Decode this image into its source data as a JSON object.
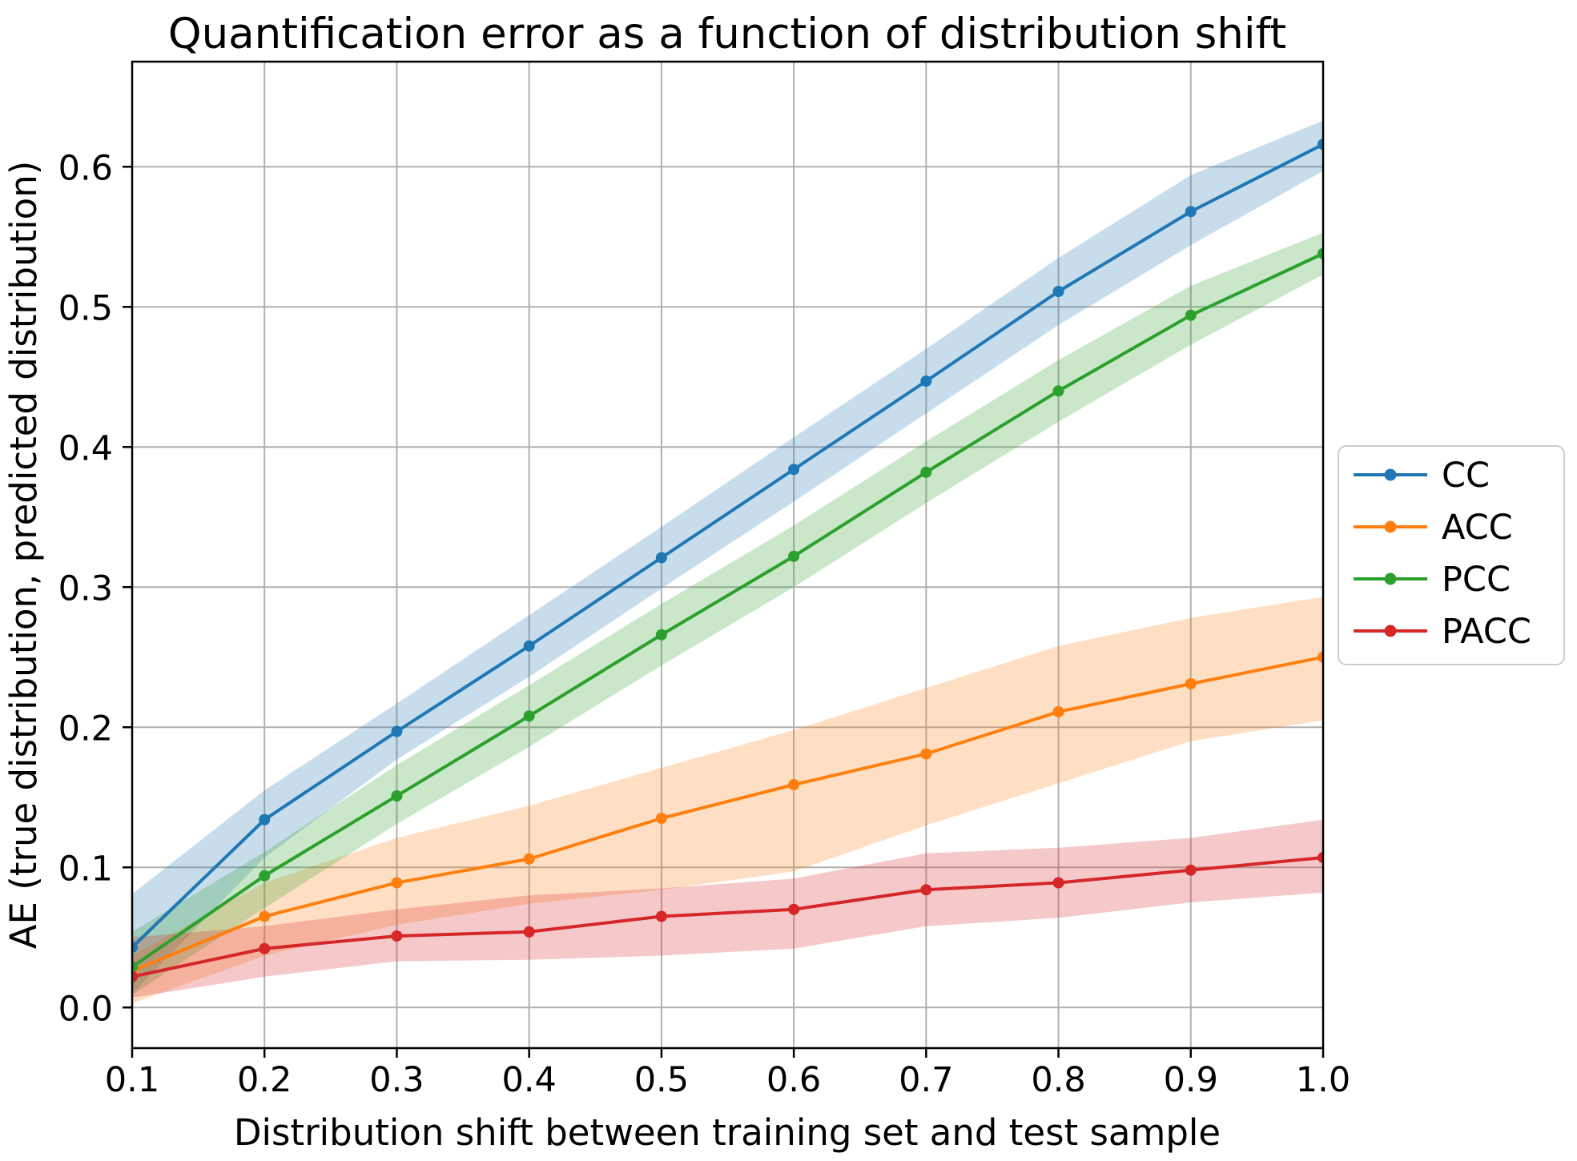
{
  "chart_data": {
    "type": "line",
    "title": "Quantification error as a function of distribution shift",
    "xlabel": "Distribution shift between training set and test sample",
    "ylabel": "AE (true distribution, predicted distribution)",
    "x": [
      0.1,
      0.2,
      0.3,
      0.4,
      0.5,
      0.6,
      0.7,
      0.8,
      0.9,
      1.0
    ],
    "x_tick_labels": [
      "0.1",
      "0.2",
      "0.3",
      "0.4",
      "0.5",
      "0.6",
      "0.7",
      "0.8",
      "0.9",
      "1.0"
    ],
    "y_ticks": [
      0.0,
      0.1,
      0.2,
      0.3,
      0.4,
      0.5,
      0.6
    ],
    "y_tick_labels": [
      "0.0",
      "0.1",
      "0.2",
      "0.3",
      "0.4",
      "0.5",
      "0.6"
    ],
    "xlim": [
      0.1,
      1.0
    ],
    "ylim": [
      -0.029,
      0.675
    ],
    "grid": true,
    "grid_color": "#b0b0b0",
    "band_alpha": 0.25,
    "legend_position": "center right",
    "series": [
      {
        "name": "CC",
        "color": "#1f77b4",
        "values": [
          0.043,
          0.134,
          0.197,
          0.258,
          0.321,
          0.384,
          0.447,
          0.511,
          0.568,
          0.616
        ],
        "band_lower": [
          0.01,
          0.107,
          0.177,
          0.236,
          0.299,
          0.361,
          0.424,
          0.487,
          0.544,
          0.597
        ],
        "band_upper": [
          0.081,
          0.155,
          0.217,
          0.28,
          0.343,
          0.407,
          0.47,
          0.535,
          0.594,
          0.633
        ]
      },
      {
        "name": "ACC",
        "color": "#ff7f0e",
        "values": [
          0.026,
          0.065,
          0.089,
          0.106,
          0.135,
          0.159,
          0.181,
          0.211,
          0.231,
          0.25
        ],
        "band_lower": [
          0.003,
          0.037,
          0.059,
          0.074,
          0.084,
          0.097,
          0.13,
          0.16,
          0.19,
          0.205
        ],
        "band_upper": [
          0.037,
          0.089,
          0.121,
          0.144,
          0.171,
          0.198,
          0.228,
          0.258,
          0.278,
          0.293
        ]
      },
      {
        "name": "PCC",
        "color": "#2ca02c",
        "values": [
          0.029,
          0.094,
          0.151,
          0.208,
          0.266,
          0.322,
          0.382,
          0.44,
          0.494,
          0.538
        ],
        "band_lower": [
          0.009,
          0.071,
          0.131,
          0.186,
          0.244,
          0.3,
          0.36,
          0.418,
          0.473,
          0.523
        ],
        "band_upper": [
          0.054,
          0.111,
          0.173,
          0.23,
          0.288,
          0.344,
          0.404,
          0.462,
          0.515,
          0.553
        ]
      },
      {
        "name": "PACC",
        "color": "#d62728",
        "values": [
          0.022,
          0.042,
          0.051,
          0.054,
          0.065,
          0.07,
          0.084,
          0.089,
          0.098,
          0.107
        ],
        "band_lower": [
          0.007,
          0.022,
          0.033,
          0.034,
          0.037,
          0.042,
          0.058,
          0.064,
          0.075,
          0.082
        ],
        "band_upper": [
          0.05,
          0.058,
          0.07,
          0.08,
          0.085,
          0.092,
          0.11,
          0.114,
          0.121,
          0.134
        ]
      }
    ]
  }
}
